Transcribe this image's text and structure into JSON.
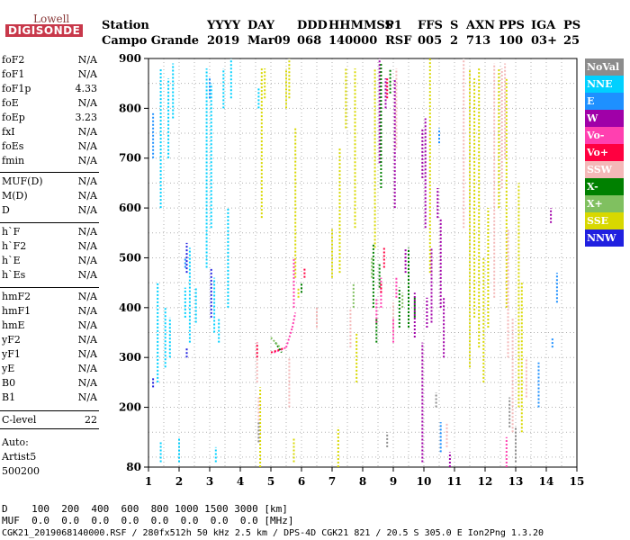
{
  "logo": {
    "top": "Lowell",
    "bottom": "DIGISONDE"
  },
  "header": {
    "row1": [
      "Station",
      "YYYY",
      "DAY",
      "DDD",
      "HHMMSS",
      "P1",
      "FFS",
      "S",
      "AXN",
      "PPS",
      "IGA",
      "PS"
    ],
    "row2": [
      "Campo Grande",
      "2019",
      "Mar09",
      "068",
      "140000",
      "RSF",
      "005",
      "2",
      "713",
      "100",
      "03+",
      "25"
    ]
  },
  "params": {
    "group1": [
      {
        "name": "foF2",
        "value": "N/A"
      },
      {
        "name": "foF1",
        "value": "N/A"
      },
      {
        "name": "foF1p",
        "value": "4.33"
      },
      {
        "name": "foE",
        "value": "N/A"
      },
      {
        "name": "foEp",
        "value": "3.23"
      },
      {
        "name": "fxI",
        "value": "N/A"
      },
      {
        "name": "foEs",
        "value": "N/A"
      },
      {
        "name": "fmin",
        "value": "N/A"
      }
    ],
    "group2": [
      {
        "name": "MUF(D)",
        "value": "N/A"
      },
      {
        "name": "M(D)",
        "value": "N/A"
      },
      {
        "name": "D",
        "value": "N/A"
      }
    ],
    "group3": [
      {
        "name": "h`F",
        "value": "N/A"
      },
      {
        "name": "h`F2",
        "value": "N/A"
      },
      {
        "name": "h`E",
        "value": "N/A"
      },
      {
        "name": "h`Es",
        "value": "N/A"
      }
    ],
    "group4": [
      {
        "name": "hmF2",
        "value": "N/A"
      },
      {
        "name": "hmF1",
        "value": "N/A"
      },
      {
        "name": "hmE",
        "value": "N/A"
      },
      {
        "name": "yF2",
        "value": "N/A"
      },
      {
        "name": "yF1",
        "value": "N/A"
      },
      {
        "name": "yE",
        "value": "N/A"
      },
      {
        "name": "B0",
        "value": "N/A"
      },
      {
        "name": "B1",
        "value": "N/A"
      }
    ],
    "clevel": {
      "name": "C-level",
      "value": "22"
    },
    "auto": [
      "Auto:",
      "Artist5",
      "500200"
    ]
  },
  "legend": [
    {
      "label": "NoVal",
      "color": "#8c8c8c"
    },
    {
      "label": "NNE",
      "color": "#00d0ff"
    },
    {
      "label": "E",
      "color": "#1e90ff"
    },
    {
      "label": "W",
      "color": "#a000a8"
    },
    {
      "label": "Vo-",
      "color": "#ff40b0"
    },
    {
      "label": "Vo+",
      "color": "#ff0040"
    },
    {
      "label": "SSW",
      "color": "#f4b8b8"
    },
    {
      "label": "X-",
      "color": "#008000"
    },
    {
      "label": "X+",
      "color": "#80c060"
    },
    {
      "label": "SSE",
      "color": "#d8d800"
    },
    {
      "label": "NNW",
      "color": "#2020e0"
    }
  ],
  "footer": {
    "line1": "D    100  200  400  600  800 1000 1500 3000 [km]",
    "line2": "MUF  0.0  0.0  0.0  0.0  0.0  0.0  0.0  0.0 [MHz]",
    "line3": "CGK21_2019068140000.RSF / 280fx512h 50 kHz 2.5 km / DPS-4D CGK21 821 / 20.5 S 305.0 E Ion2Png 1.3.20"
  },
  "chart_data": {
    "type": "scatter",
    "xlim": [
      1,
      15
    ],
    "ylim": [
      80,
      900
    ],
    "x_ticks": [
      1,
      2,
      3,
      4,
      5,
      6,
      7,
      8,
      9,
      10,
      11,
      12,
      13,
      14,
      15
    ],
    "y_ticks": [
      80,
      200,
      300,
      400,
      500,
      600,
      700,
      800,
      900
    ],
    "grid": true,
    "grid_x": [
      1.5,
      2,
      2.5,
      3,
      3.5,
      4,
      4.5,
      5,
      5.5,
      6,
      6.5,
      7,
      7.5,
      8,
      8.5,
      9,
      9.5,
      10,
      10.5,
      11,
      11.5,
      12,
      12.5,
      13,
      13.5,
      14,
      14.5
    ],
    "grid_y": [
      100,
      150,
      200,
      250,
      300,
      350,
      400,
      450,
      500,
      550,
      600,
      650,
      700,
      750,
      800,
      850
    ],
    "legend_placement": "right",
    "series": [
      {
        "name": "NNE",
        "segments": [
          [
            1.3,
            250,
            1.3,
            450
          ],
          [
            1.4,
            600,
            1.4,
            880
          ],
          [
            1.55,
            280,
            1.55,
            400
          ],
          [
            1.65,
            700,
            1.65,
            860
          ],
          [
            1.8,
            780,
            1.8,
            890
          ],
          [
            1.7,
            300,
            1.7,
            380
          ],
          [
            2.2,
            380,
            2.2,
            440
          ],
          [
            2.35,
            330,
            2.35,
            520
          ],
          [
            2.55,
            370,
            2.55,
            440
          ],
          [
            2.9,
            480,
            2.9,
            880
          ],
          [
            3.05,
            560,
            3.05,
            850
          ],
          [
            3.15,
            350,
            3.15,
            460
          ],
          [
            3.3,
            330,
            3.3,
            380
          ],
          [
            3.45,
            800,
            3.45,
            880
          ],
          [
            3.6,
            400,
            3.6,
            600
          ],
          [
            3.7,
            820,
            3.7,
            900
          ],
          [
            1.4,
            90,
            1.4,
            130
          ],
          [
            2.0,
            90,
            2.0,
            140
          ],
          [
            3.2,
            90,
            3.2,
            120
          ],
          [
            4.6,
            800,
            4.6,
            840
          ]
        ]
      },
      {
        "name": "E",
        "segments": [
          [
            1.15,
            700,
            1.15,
            790
          ],
          [
            2.2,
            480,
            2.2,
            500
          ],
          [
            3.0,
            820,
            3.0,
            860
          ],
          [
            10.55,
            110,
            10.55,
            170
          ],
          [
            10.5,
            730,
            10.5,
            760
          ],
          [
            14.35,
            410,
            14.35,
            470
          ],
          [
            13.75,
            200,
            13.75,
            290
          ],
          [
            14.2,
            320,
            14.2,
            340
          ]
        ]
      },
      {
        "name": "NNW",
        "segments": [
          [
            2.25,
            470,
            2.25,
            530
          ],
          [
            3.05,
            380,
            3.05,
            480
          ],
          [
            2.25,
            300,
            2.25,
            320
          ],
          [
            1.15,
            240,
            1.15,
            260
          ]
        ]
      },
      {
        "name": "SSE",
        "segments": [
          [
            4.7,
            580,
            4.7,
            880
          ],
          [
            4.8,
            820,
            4.8,
            880
          ],
          [
            5.5,
            800,
            5.5,
            880
          ],
          [
            5.6,
            820,
            5.6,
            900
          ],
          [
            5.8,
            460,
            5.8,
            760
          ],
          [
            5.9,
            420,
            5.9,
            440
          ],
          [
            7.0,
            460,
            7.0,
            560
          ],
          [
            7.25,
            470,
            7.25,
            720
          ],
          [
            7.2,
            80,
            7.2,
            160
          ],
          [
            7.45,
            760,
            7.45,
            880
          ],
          [
            7.75,
            560,
            7.75,
            880
          ],
          [
            7.8,
            250,
            7.8,
            350
          ],
          [
            8.4,
            520,
            8.4,
            880
          ],
          [
            10.2,
            470,
            10.2,
            900
          ],
          [
            11.5,
            280,
            11.5,
            880
          ],
          [
            11.65,
            380,
            11.65,
            860
          ],
          [
            11.8,
            320,
            11.8,
            880
          ],
          [
            11.95,
            250,
            11.95,
            500
          ],
          [
            12.1,
            360,
            12.1,
            600
          ],
          [
            12.45,
            600,
            12.45,
            880
          ],
          [
            12.7,
            400,
            12.7,
            860
          ],
          [
            13.1,
            200,
            13.1,
            650
          ],
          [
            13.2,
            150,
            13.2,
            450
          ],
          [
            5.75,
            90,
            5.75,
            140
          ],
          [
            4.65,
            80,
            4.65,
            240
          ]
        ]
      },
      {
        "name": "SSW",
        "segments": [
          [
            4.55,
            250,
            4.55,
            330
          ],
          [
            4.6,
            130,
            4.6,
            220
          ],
          [
            5.6,
            200,
            5.6,
            300
          ],
          [
            6.5,
            360,
            6.5,
            400
          ],
          [
            7.6,
            320,
            7.6,
            400
          ],
          [
            9.0,
            350,
            9.0,
            410
          ],
          [
            9.1,
            720,
            9.1,
            880
          ],
          [
            11.3,
            560,
            11.3,
            900
          ],
          [
            12.3,
            420,
            12.3,
            890
          ],
          [
            12.55,
            640,
            12.55,
            880
          ],
          [
            12.65,
            700,
            12.65,
            890
          ],
          [
            12.75,
            300,
            12.75,
            560
          ],
          [
            12.9,
            150,
            12.9,
            380
          ],
          [
            13.35,
            220,
            13.35,
            300
          ],
          [
            10.75,
            120,
            10.75,
            170
          ]
        ]
      },
      {
        "name": "W",
        "segments": [
          [
            8.55,
            690,
            8.55,
            900
          ],
          [
            8.75,
            800,
            8.75,
            860
          ],
          [
            9.05,
            600,
            9.05,
            860
          ],
          [
            9.4,
            470,
            9.4,
            520
          ],
          [
            9.7,
            340,
            9.7,
            430
          ],
          [
            9.95,
            90,
            9.95,
            330
          ],
          [
            10.05,
            560,
            10.05,
            780
          ],
          [
            10.1,
            360,
            10.1,
            420
          ],
          [
            10.25,
            370,
            10.25,
            520
          ],
          [
            10.45,
            580,
            10.45,
            640
          ],
          [
            10.55,
            400,
            10.55,
            580
          ],
          [
            10.65,
            300,
            10.65,
            420
          ],
          [
            10.85,
            80,
            10.85,
            110
          ],
          [
            9.95,
            660,
            9.95,
            760
          ],
          [
            14.15,
            570,
            14.15,
            600
          ]
        ]
      },
      {
        "name": "Vo-",
        "segments": [
          [
            5.1,
            310,
            5.5,
            320
          ],
          [
            5.5,
            320,
            5.7,
            360
          ],
          [
            5.7,
            360,
            5.8,
            390
          ],
          [
            5.75,
            400,
            5.75,
            500
          ],
          [
            8.6,
            400,
            8.6,
            460
          ],
          [
            9.1,
            420,
            9.1,
            460
          ],
          [
            9.0,
            330,
            9.0,
            380
          ],
          [
            12.7,
            80,
            12.7,
            140
          ],
          [
            8.45,
            370,
            8.45,
            420
          ]
        ]
      },
      {
        "name": "Vo+",
        "segments": [
          [
            5.0,
            310,
            5.4,
            318
          ],
          [
            6.1,
            460,
            6.1,
            480
          ],
          [
            8.7,
            480,
            8.7,
            520
          ],
          [
            8.8,
            820,
            8.8,
            860
          ],
          [
            8.6,
            430,
            8.6,
            450
          ],
          [
            4.55,
            300,
            4.55,
            330
          ]
        ]
      },
      {
        "name": "X-",
        "segments": [
          [
            5.15,
            330,
            5.35,
            310
          ],
          [
            6.0,
            430,
            6.0,
            450
          ],
          [
            8.35,
            400,
            8.35,
            530
          ],
          [
            8.55,
            440,
            8.55,
            490
          ],
          [
            8.6,
            640,
            8.6,
            890
          ],
          [
            8.9,
            830,
            8.9,
            880
          ],
          [
            9.2,
            360,
            9.2,
            440
          ],
          [
            9.5,
            360,
            9.5,
            520
          ],
          [
            8.45,
            330,
            8.45,
            380
          ],
          [
            9.7,
            380,
            9.7,
            420
          ]
        ]
      },
      {
        "name": "X+",
        "segments": [
          [
            5.0,
            340,
            5.3,
            320
          ],
          [
            7.7,
            400,
            7.7,
            450
          ],
          [
            8.3,
            460,
            8.3,
            500
          ],
          [
            9.3,
            400,
            9.3,
            430
          ]
        ]
      },
      {
        "name": "NoVal",
        "segments": [
          [
            4.6,
            130,
            4.6,
            170
          ],
          [
            8.8,
            120,
            8.8,
            150
          ],
          [
            10.4,
            200,
            10.4,
            230
          ],
          [
            13.0,
            90,
            13.0,
            160
          ],
          [
            12.8,
            160,
            12.8,
            220
          ]
        ]
      }
    ]
  }
}
